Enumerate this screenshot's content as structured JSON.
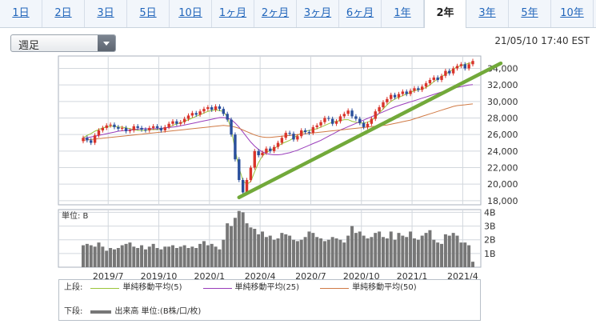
{
  "tabs": [
    "1日",
    "2日",
    "3日",
    "5日",
    "10日",
    "1ヶ月",
    "2ヶ月",
    "3ヶ月",
    "6ヶ月",
    "1年",
    "2年",
    "3年",
    "5年",
    "10年"
  ],
  "active_tab": "2年",
  "period_select": "週足",
  "timestamp": "21/05/10 17:40 EST",
  "legend": {
    "top_label": "上段:",
    "bottom_label": "下段:",
    "ma5": "単純移動平均(5)",
    "ma25": "単純移動平均(25)",
    "ma50": "単純移動平均(50)",
    "volume": "出来高 単位:(B株/口/枚)"
  },
  "colors": {
    "up": "#d9342b",
    "down": "#2a4f9c",
    "ma5": "#9bc43a",
    "ma25": "#9a3dbb",
    "ma50": "#d07a45",
    "trend": "#72a93a",
    "volume": "#777777"
  },
  "chart_data": {
    "type": "candlestick",
    "price_ticks": [
      "18,000",
      "20,000",
      "22,000",
      "24,000",
      "26,000",
      "28,000",
      "30,000",
      "32,000",
      "34,000"
    ],
    "x_labels": [
      "2019/7",
      "2019/10",
      "2020/1",
      "2020/4",
      "2020/7",
      "2020/10",
      "2021/1",
      "2021/4"
    ],
    "volume_unit_label": "単位: B",
    "volume_ticks": [
      "1B",
      "2B",
      "3B",
      "4B"
    ],
    "ylim": [
      17500,
      35500
    ],
    "volume_ylim": [
      0,
      4.2
    ],
    "series": [
      {
        "name": "単純移動平均(5)",
        "values": [
          25600,
          25900,
          26100,
          26400,
          26600,
          26800,
          26900,
          27000,
          27000,
          26900,
          26900,
          26800,
          26700,
          26600,
          26500,
          26500,
          26500,
          26600,
          26600,
          26600,
          26700,
          26800,
          26900,
          27100,
          27300,
          27400,
          27600,
          27800,
          28000,
          28200,
          28400,
          28600,
          28800,
          28900,
          29000,
          28900,
          28800,
          28100,
          26600,
          24200,
          22000,
          20400,
          20000,
          20300,
          21500,
          22600,
          23400,
          23800,
          24100,
          24300,
          24600,
          24900,
          25100,
          25300,
          25600,
          25900,
          26200,
          26400,
          26500,
          26600,
          26700,
          26900,
          27100,
          27300,
          27500,
          27600,
          27700,
          27800,
          27800,
          27600,
          27500,
          27400,
          27400,
          27500,
          27700,
          28100,
          28600,
          29100,
          29600,
          30000,
          30300,
          30500,
          30700,
          30900,
          31100,
          31300,
          31400,
          31500,
          31700,
          32000,
          32400,
          32700,
          33000,
          33300,
          33600,
          33900,
          34200,
          34300,
          34500,
          34600,
          34700
        ]
      },
      {
        "name": "単純移動平均(25)",
        "values": [
          25500,
          25600,
          25700,
          25800,
          25900,
          26000,
          26100,
          26200,
          26300,
          26400,
          26450,
          26500,
          26550,
          26600,
          26650,
          26700,
          26700,
          26700,
          26700,
          26700,
          26750,
          26800,
          26850,
          26900,
          26950,
          27050,
          27150,
          27250,
          27350,
          27450,
          27550,
          27650,
          27750,
          27850,
          27950,
          28050,
          28050,
          28000,
          27800,
          27400,
          26900,
          26300,
          25700,
          25100,
          24600,
          24200,
          23900,
          23700,
          23600,
          23550,
          23550,
          23600,
          23700,
          23800,
          23950,
          24100,
          24300,
          24500,
          24700,
          24900,
          25100,
          25300,
          25550,
          25800,
          26050,
          26300,
          26550,
          26750,
          26950,
          27150,
          27350,
          27550,
          27750,
          27950,
          28150,
          28350,
          28550,
          28750,
          28950,
          29150,
          29350,
          29500,
          29650,
          29800,
          29950,
          30100,
          30250,
          30400,
          30550,
          30700,
          30850,
          31000,
          31150,
          31300,
          31450,
          31600,
          31700,
          31800,
          31900,
          32000,
          32050
        ]
      },
      {
        "name": "単純移動平均(50)",
        "values": [
          25300,
          25350,
          25400,
          25450,
          25500,
          25550,
          25600,
          25650,
          25700,
          25750,
          25800,
          25850,
          25900,
          25950,
          26000,
          26050,
          26100,
          26150,
          26200,
          26250,
          26300,
          26350,
          26400,
          26450,
          26500,
          26550,
          26600,
          26650,
          26700,
          26750,
          26800,
          26850,
          26900,
          26950,
          27000,
          27050,
          27100,
          27050,
          27000,
          26900,
          26750,
          26550,
          26350,
          26150,
          25950,
          25800,
          25700,
          25650,
          25650,
          25700,
          25750,
          25800,
          25850,
          25900,
          25950,
          26000,
          26050,
          26100,
          26150,
          26200,
          26250,
          26300,
          26350,
          26400,
          26450,
          26500,
          26550,
          26600,
          26650,
          26700,
          26750,
          26800,
          26850,
          26900,
          26950,
          27000,
          27050,
          27100,
          27150,
          27250,
          27350,
          27450,
          27550,
          27650,
          27750,
          27900,
          28050,
          28200,
          28350,
          28500,
          28650,
          28800,
          28950,
          29100,
          29250,
          29400,
          29500,
          29550,
          29600,
          29650,
          29700
        ]
      }
    ],
    "close_values": [
      25600,
      25300,
      25000,
      25900,
      26500,
      26800,
      27100,
      27200,
      26900,
      26700,
      26800,
      26400,
      26500,
      27000,
      26800,
      26600,
      26500,
      26800,
      27000,
      26800,
      26500,
      26900,
      27300,
      27600,
      27300,
      27500,
      27900,
      28300,
      28600,
      28400,
      28800,
      29100,
      29300,
      29000,
      29400,
      29100,
      28500,
      27800,
      26000,
      23000,
      20500,
      19000,
      20500,
      22000,
      24000,
      23500,
      23800,
      24300,
      24000,
      24500,
      25000,
      25600,
      26200,
      26100,
      25400,
      25800,
      26500,
      26300,
      26200,
      26900,
      27100,
      27500,
      28000,
      27900,
      27300,
      27600,
      28200,
      28500,
      28900,
      28200,
      27900,
      27400,
      26900,
      27300,
      27900,
      28800,
      29300,
      29900,
      30300,
      30800,
      30500,
      30900,
      31200,
      30900,
      31300,
      31600,
      31400,
      31800,
      32200,
      32600,
      32900,
      32600,
      33100,
      33700,
      33400,
      34000,
      34300,
      34500,
      34000,
      34500,
      34900
    ],
    "open_values": [
      25200,
      25600,
      25300,
      25000,
      25900,
      26500,
      26800,
      27100,
      27200,
      26900,
      26700,
      26800,
      26400,
      26500,
      27000,
      26800,
      26600,
      26500,
      26800,
      27000,
      26800,
      26500,
      26900,
      27300,
      27600,
      27300,
      27500,
      27900,
      28300,
      28600,
      28400,
      28800,
      29100,
      29300,
      29000,
      29400,
      29100,
      28500,
      27800,
      26000,
      23000,
      20500,
      19000,
      20500,
      22000,
      24000,
      23500,
      23800,
      24300,
      24000,
      24500,
      25000,
      25600,
      26200,
      26100,
      25400,
      25800,
      26500,
      26300,
      26200,
      26900,
      27100,
      27500,
      28000,
      27900,
      27300,
      27600,
      28200,
      28500,
      28900,
      28200,
      27900,
      27400,
      26900,
      27300,
      27900,
      28800,
      29300,
      29900,
      30300,
      30800,
      30500,
      30900,
      31200,
      30900,
      31300,
      31600,
      31400,
      31800,
      32200,
      32600,
      32900,
      32600,
      33100,
      33700,
      33400,
      34000,
      34300,
      34500,
      34000,
      34500
    ],
    "volume_values": [
      1.6,
      1.7,
      1.6,
      1.5,
      1.8,
      1.5,
      1.2,
      1.4,
      1.3,
      1.4,
      1.6,
      1.7,
      1.8,
      1.5,
      1.4,
      1.6,
      1.3,
      1.5,
      1.7,
      1.4,
      1.3,
      1.5,
      1.5,
      1.6,
      1.4,
      1.5,
      1.6,
      1.4,
      1.5,
      1.4,
      1.7,
      1.9,
      1.6,
      1.7,
      1.5,
      1.3,
      2.0,
      3.2,
      3.0,
      3.6,
      4.1,
      4.0,
      3.2,
      2.9,
      2.8,
      2.4,
      2.6,
      2.2,
      2.3,
      2.0,
      2.1,
      2.5,
      2.4,
      2.3,
      2.0,
      1.9,
      2.0,
      2.2,
      2.6,
      2.5,
      2.2,
      2.1,
      1.9,
      2.0,
      2.2,
      2.1,
      2.0,
      1.8,
      2.3,
      3.0,
      2.5,
      2.6,
      2.3,
      2.1,
      2.2,
      2.5,
      2.6,
      2.2,
      2.1,
      2.6,
      2.0,
      2.5,
      2.3,
      2.2,
      2.6,
      2.1,
      2.0,
      2.3,
      2.5,
      2.7,
      2.0,
      1.8,
      1.7,
      2.4,
      2.3,
      2.5,
      2.3,
      1.8,
      1.8,
      1.6,
      0.4
    ],
    "trendline": [
      [
        40,
        18400
      ],
      [
        100,
        35000
      ]
    ]
  }
}
